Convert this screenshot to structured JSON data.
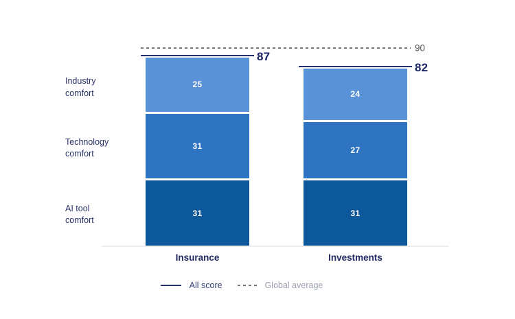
{
  "chart_data": {
    "type": "bar",
    "variant": "stacked",
    "title": "",
    "categories": [
      "Insurance",
      "Investments"
    ],
    "row_labels": [
      "Industry\ncomfort",
      "Technology\ncomfort",
      "AI tool\ncomfort"
    ],
    "series": [
      {
        "name": "Industry comfort",
        "values": [
          25,
          24
        ],
        "color": "#5a92d7"
      },
      {
        "name": "Technology comfort",
        "values": [
          31,
          27
        ],
        "color": "#2e74c0"
      },
      {
        "name": "AI tool comfort",
        "values": [
          31,
          31
        ],
        "color": "#0d589b"
      }
    ],
    "totals": [
      87,
      82
    ],
    "global_average": 90,
    "ylim": [
      0,
      90
    ],
    "grid": false,
    "legend": {
      "position": "bottom",
      "items": [
        {
          "label": "All score",
          "style": "solid"
        },
        {
          "label": "Global average",
          "style": "dashed"
        }
      ]
    },
    "colors": {
      "total_line": "#25306c",
      "total_text": "#1b2766",
      "category_text": "#232c66",
      "row_label_text": "#2a3169",
      "global_average_line": "#75777c",
      "global_average_text": "#55575c",
      "axis_line": "#eceef0",
      "segment_value_text": "#ffffff",
      "legend_text": "#323e74",
      "legend_text_muted": "#9aa0ac"
    }
  }
}
